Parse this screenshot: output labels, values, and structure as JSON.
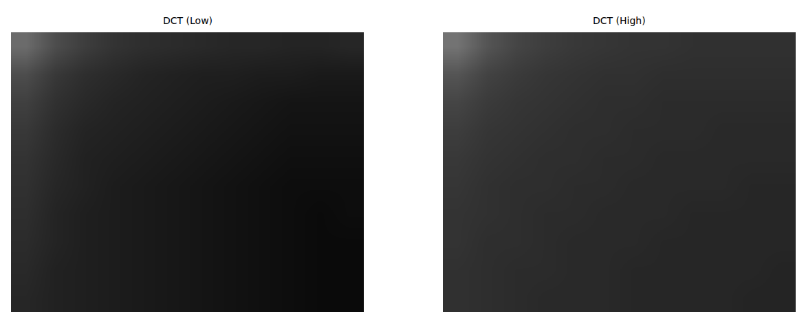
{
  "chart_data": [
    {
      "type": "heatmap",
      "title": "DCT (Low)",
      "color": "gray",
      "zlim": [
        0,
        1
      ],
      "tick_labels": false,
      "cells": [
        [
          0.42,
          0.3,
          0.24,
          0.2,
          0.18,
          0.17,
          0.16,
          0.15,
          0.15,
          0.14,
          0.14,
          0.15
        ],
        [
          0.3,
          0.22,
          0.18,
          0.16,
          0.14,
          0.13,
          0.12,
          0.12,
          0.11,
          0.11,
          0.1,
          0.1
        ],
        [
          0.25,
          0.19,
          0.16,
          0.14,
          0.13,
          0.12,
          0.11,
          0.1,
          0.09,
          0.08,
          0.08,
          0.08
        ],
        [
          0.22,
          0.17,
          0.14,
          0.13,
          0.12,
          0.11,
          0.1,
          0.09,
          0.08,
          0.07,
          0.07,
          0.07
        ],
        [
          0.2,
          0.16,
          0.13,
          0.12,
          0.11,
          0.1,
          0.09,
          0.08,
          0.07,
          0.06,
          0.06,
          0.06
        ],
        [
          0.19,
          0.15,
          0.13,
          0.11,
          0.1,
          0.09,
          0.08,
          0.07,
          0.06,
          0.05,
          0.05,
          0.05
        ],
        [
          0.18,
          0.14,
          0.12,
          0.11,
          0.1,
          0.09,
          0.08,
          0.07,
          0.06,
          0.05,
          0.04,
          0.05
        ],
        [
          0.17,
          0.14,
          0.12,
          0.11,
          0.1,
          0.09,
          0.08,
          0.07,
          0.06,
          0.05,
          0.04,
          0.04
        ],
        [
          0.16,
          0.13,
          0.12,
          0.11,
          0.1,
          0.09,
          0.08,
          0.07,
          0.06,
          0.05,
          0.04,
          0.04
        ],
        [
          0.15,
          0.13,
          0.12,
          0.11,
          0.1,
          0.09,
          0.08,
          0.07,
          0.06,
          0.05,
          0.04,
          0.04
        ]
      ]
    },
    {
      "type": "heatmap",
      "title": "DCT (High)",
      "color": "gray",
      "zlim": [
        0,
        1
      ],
      "tick_labels": false,
      "cells": [
        [
          0.45,
          0.33,
          0.27,
          0.24,
          0.22,
          0.21,
          0.2,
          0.2,
          0.19,
          0.19,
          0.19,
          0.19
        ],
        [
          0.33,
          0.26,
          0.23,
          0.21,
          0.2,
          0.19,
          0.19,
          0.18,
          0.18,
          0.18,
          0.18,
          0.18
        ],
        [
          0.27,
          0.23,
          0.21,
          0.2,
          0.19,
          0.18,
          0.18,
          0.17,
          0.17,
          0.17,
          0.17,
          0.17
        ],
        [
          0.24,
          0.21,
          0.2,
          0.19,
          0.18,
          0.18,
          0.17,
          0.17,
          0.17,
          0.16,
          0.16,
          0.16
        ],
        [
          0.22,
          0.2,
          0.19,
          0.18,
          0.18,
          0.17,
          0.17,
          0.16,
          0.16,
          0.16,
          0.16,
          0.16
        ],
        [
          0.21,
          0.19,
          0.18,
          0.18,
          0.17,
          0.17,
          0.16,
          0.16,
          0.16,
          0.16,
          0.15,
          0.15
        ],
        [
          0.2,
          0.19,
          0.18,
          0.17,
          0.17,
          0.16,
          0.16,
          0.16,
          0.15,
          0.15,
          0.15,
          0.15
        ],
        [
          0.2,
          0.18,
          0.18,
          0.17,
          0.16,
          0.16,
          0.16,
          0.15,
          0.15,
          0.15,
          0.15,
          0.15
        ],
        [
          0.19,
          0.18,
          0.17,
          0.17,
          0.16,
          0.16,
          0.15,
          0.15,
          0.15,
          0.15,
          0.15,
          0.14
        ],
        [
          0.19,
          0.18,
          0.17,
          0.16,
          0.16,
          0.16,
          0.15,
          0.15,
          0.15,
          0.15,
          0.14,
          0.14
        ]
      ]
    }
  ]
}
